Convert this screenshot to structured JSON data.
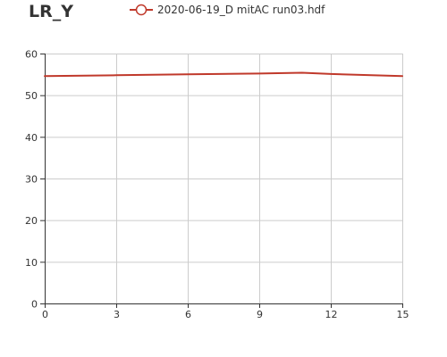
{
  "chart_data": {
    "type": "line",
    "title": "LR_Y",
    "xlabel": "",
    "ylabel": "",
    "xlim": [
      0,
      15
    ],
    "ylim": [
      0,
      60
    ],
    "xticks": [
      0,
      3,
      6,
      9,
      12,
      15
    ],
    "yticks": [
      0,
      10,
      20,
      30,
      40,
      50,
      60
    ],
    "grid": true,
    "legend_position": "top",
    "series": [
      {
        "name": "2020-06-19_D mitAC run03.hdf",
        "color": "#c0392b",
        "marker": "circle",
        "x": [
          0,
          3,
          6,
          9,
          10.8,
          12,
          15
        ],
        "y": [
          54.6,
          54.8,
          55.0,
          55.2,
          55.4,
          55.1,
          54.6
        ]
      }
    ]
  }
}
